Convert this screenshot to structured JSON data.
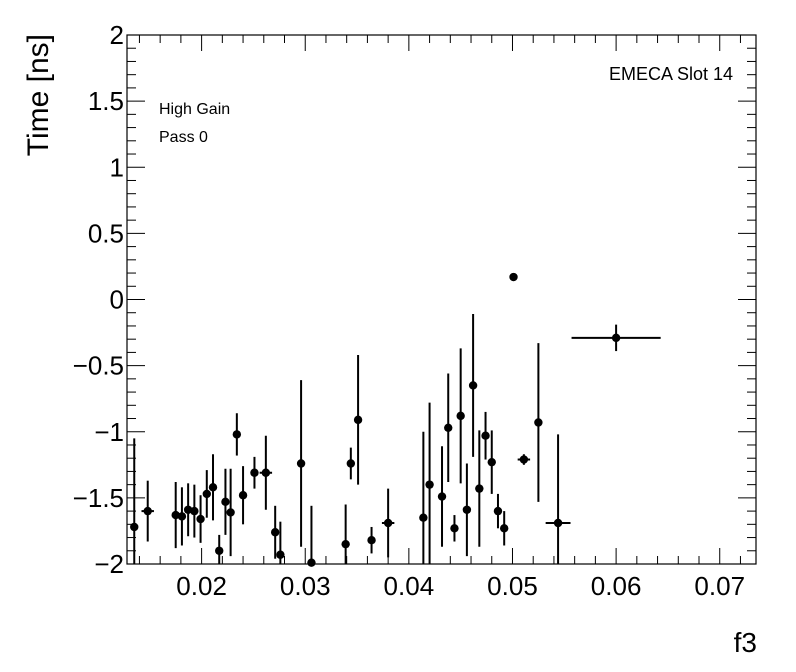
{
  "chart_data": {
    "type": "scatter",
    "title": "",
    "xlabel": "f3",
    "ylabel": "Time [ns]",
    "xlim": [
      0.0128,
      0.0735
    ],
    "ylim": [
      -2,
      2
    ],
    "grid": false,
    "x_tick_labels": [
      "0.02",
      "0.03",
      "0.04",
      "0.05",
      "0.06",
      "0.07"
    ],
    "x_ticks": [
      0.02,
      0.03,
      0.04,
      0.05,
      0.06,
      0.07
    ],
    "y_tick_labels": [
      "−2",
      "−1.5",
      "−1",
      "−0.5",
      "0",
      "0.5",
      "1",
      "1.5",
      "2"
    ],
    "y_ticks": [
      -2,
      -1.5,
      -1,
      -0.5,
      0,
      0.5,
      1,
      1.5,
      2
    ],
    "annotations": [
      "High Gain",
      "Pass 0",
      "EMECA Slot 14"
    ],
    "series": [
      {
        "points": [
          {
            "x": 0.0135,
            "y": -1.72,
            "xerr": 0,
            "yerr": 0.67
          },
          {
            "x": 0.0148,
            "y": -1.6,
            "xerr": 0.0006,
            "yerr": 0.23
          },
          {
            "x": 0.0175,
            "y": -1.63,
            "xerr": 0,
            "yerr": 0.25
          },
          {
            "x": 0.0181,
            "y": -1.64,
            "xerr": 0,
            "yerr": 0.22
          },
          {
            "x": 0.0187,
            "y": -1.59,
            "xerr": 0,
            "yerr": 0.2
          },
          {
            "x": 0.0193,
            "y": -1.6,
            "xerr": 0,
            "yerr": 0.2
          },
          {
            "x": 0.0199,
            "y": -1.66,
            "xerr": 0,
            "yerr": 0.18
          },
          {
            "x": 0.0205,
            "y": -1.47,
            "xerr": 0,
            "yerr": 0.18
          },
          {
            "x": 0.0211,
            "y": -1.42,
            "xerr": 0,
            "yerr": 0.25
          },
          {
            "x": 0.0217,
            "y": -1.9,
            "xerr": 0,
            "yerr": 0.12
          },
          {
            "x": 0.0223,
            "y": -1.53,
            "xerr": 0,
            "yerr": 0.25
          },
          {
            "x": 0.0228,
            "y": -1.61,
            "xerr": 0,
            "yerr": 0.33
          },
          {
            "x": 0.0234,
            "y": -1.02,
            "xerr": 0,
            "yerr": 0.16
          },
          {
            "x": 0.024,
            "y": -1.48,
            "xerr": 0,
            "yerr": 0.22
          },
          {
            "x": 0.0251,
            "y": -1.31,
            "xerr": 0,
            "yerr": 0.12
          },
          {
            "x": 0.0262,
            "y": -1.31,
            "xerr": 0.0006,
            "yerr": 0.28
          },
          {
            "x": 0.0271,
            "y": -1.76,
            "xerr": 0,
            "yerr": 0.2
          },
          {
            "x": 0.0276,
            "y": -1.93,
            "xerr": 0,
            "yerr": 0.25
          },
          {
            "x": 0.0296,
            "y": -1.24,
            "xerr": 0,
            "yerr": 0.63
          },
          {
            "x": 0.0306,
            "y": -1.99,
            "xerr": 0,
            "yerr": 0.43
          },
          {
            "x": 0.0339,
            "y": -1.85,
            "xerr": 0,
            "yerr": 0.3
          },
          {
            "x": 0.0344,
            "y": -1.24,
            "xerr": 0,
            "yerr": 0.12
          },
          {
            "x": 0.0351,
            "y": -0.91,
            "xerr": 0,
            "yerr": 0.49
          },
          {
            "x": 0.0364,
            "y": -1.82,
            "xerr": 0,
            "yerr": 0.1
          },
          {
            "x": 0.038,
            "y": -1.69,
            "xerr": 0.0006,
            "yerr": 0.26
          },
          {
            "x": 0.0414,
            "y": -1.65,
            "xerr": 0,
            "yerr": 0.65
          },
          {
            "x": 0.042,
            "y": -1.4,
            "xerr": 0,
            "yerr": 0.62
          },
          {
            "x": 0.0432,
            "y": -1.49,
            "xerr": 0,
            "yerr": 0.38
          },
          {
            "x": 0.0438,
            "y": -0.97,
            "xerr": 0,
            "yerr": 0.41
          },
          {
            "x": 0.0444,
            "y": -1.73,
            "xerr": 0,
            "yerr": 0.1
          },
          {
            "x": 0.045,
            "y": -0.88,
            "xerr": 0,
            "yerr": 0.51
          },
          {
            "x": 0.0456,
            "y": -1.59,
            "xerr": 0,
            "yerr": 0.35
          },
          {
            "x": 0.0462,
            "y": -0.65,
            "xerr": 0,
            "yerr": 0.54
          },
          {
            "x": 0.0468,
            "y": -1.43,
            "xerr": 0,
            "yerr": 0.44
          },
          {
            "x": 0.0474,
            "y": -1.03,
            "xerr": 0,
            "yerr": 0.18
          },
          {
            "x": 0.048,
            "y": -1.23,
            "xerr": 0,
            "yerr": 0.24
          },
          {
            "x": 0.0486,
            "y": -1.6,
            "xerr": 0,
            "yerr": 0.13
          },
          {
            "x": 0.0492,
            "y": -1.73,
            "xerr": 0,
            "yerr": 0.13
          },
          {
            "x": 0.0501,
            "y": 0.17,
            "xerr": 0,
            "yerr": 0
          },
          {
            "x": 0.0511,
            "y": -1.21,
            "xerr": 0.0006,
            "yerr": 0.04
          },
          {
            "x": 0.0525,
            "y": -0.93,
            "xerr": 0,
            "yerr": 0.6
          },
          {
            "x": 0.0544,
            "y": -1.69,
            "xerr": 0.0012,
            "yerr": 0.67
          },
          {
            "x": 0.06,
            "y": -0.29,
            "xerr": 0.0043,
            "yerr": 0.1
          }
        ]
      }
    ]
  }
}
